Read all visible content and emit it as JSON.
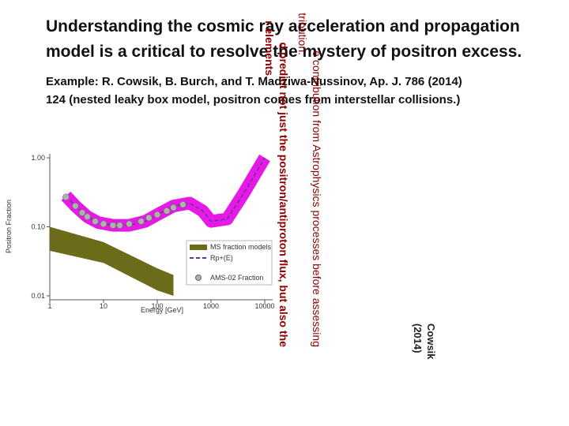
{
  "header": {
    "title_lines": [
      "Understanding the cosmic ray acceleration and propagation",
      "model is a critical to resolve the mystery of positron excess."
    ]
  },
  "example": {
    "lines": [
      "Example: R. Cowsik, B. Burch, and T. Madziwa-Nussinov, Ap. J. 786 (2014)",
      "124   (nested leaky box model, positron comes from interstellar collisions.)"
    ]
  },
  "overlay_text": {
    "lines": [
      "e contribution from Astrophysics processes before assessing",
      "tribution.",
      "d predict not just the positron/antiproton flux, but also the",
      "r elements."
    ]
  },
  "citation": {
    "lines": [
      "Cowsik",
      "(2014)"
    ]
  },
  "figure": {
    "ylabel": "Positron Fraction",
    "xlabel": "Energy [GeV]",
    "xticks": [
      1,
      10,
      100,
      1000,
      10000
    ],
    "yticks": [
      {
        "value": 0.01,
        "label": "0.01"
      },
      {
        "value": 0.1,
        "label": "0.10"
      },
      {
        "value": 1,
        "label": "1.00"
      }
    ],
    "legend": [
      "MS fraction models",
      "Rp+(E)",
      "AMS-02 Fraction"
    ],
    "model": {
      "color": "#e619e6",
      "x": [
        2,
        3,
        5,
        8,
        15,
        30,
        60,
        100,
        200,
        400,
        700,
        1000,
        2000,
        4000,
        10000
      ],
      "y": [
        0.28,
        0.2,
        0.14,
        0.115,
        0.105,
        0.105,
        0.12,
        0.15,
        0.2,
        0.22,
        0.17,
        0.12,
        0.13,
        0.3,
        1.0
      ]
    },
    "ams": {
      "color": "#b0b0b0",
      "x": [
        2,
        3,
        4,
        5,
        7,
        10,
        15,
        20,
        30,
        50,
        70,
        100,
        150,
        200,
        300
      ],
      "y": [
        0.27,
        0.2,
        0.16,
        0.14,
        0.12,
        0.11,
        0.105,
        0.105,
        0.11,
        0.12,
        0.135,
        0.15,
        0.17,
        0.19,
        0.21
      ]
    },
    "ms": {
      "color": "#6b6b1a",
      "x": [
        1,
        10,
        100,
        200
      ],
      "lower": [
        0.045,
        0.03,
        0.012,
        0.01
      ],
      "upper": [
        0.1,
        0.06,
        0.025,
        0.02
      ]
    }
  }
}
